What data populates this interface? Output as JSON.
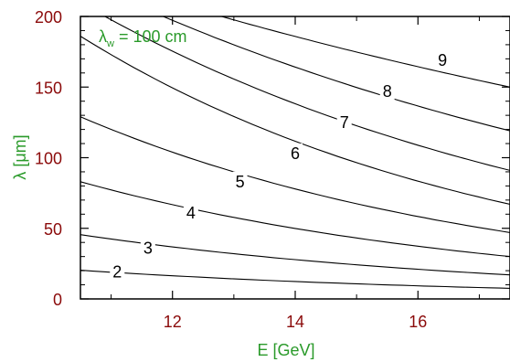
{
  "chart_data": {
    "type": "line",
    "xlabel": "E  [GeV]",
    "ylabel": "λ  [μm]",
    "xlim": [
      10.5,
      17.5
    ],
    "ylim": [
      0,
      200
    ],
    "x_ticks": [
      12,
      14,
      16
    ],
    "y_ticks": [
      0,
      50,
      100,
      150,
      200
    ],
    "annotation": {
      "main": "λ",
      "sub": "w",
      "rest": " = 100 cm"
    },
    "grid": false,
    "colors": {
      "tick_labels": "#8b0a0a",
      "axis_titles": "#2a9a2a",
      "curves": "#000000"
    },
    "series": [
      {
        "name": "2",
        "x": [
          10.5,
          17.5
        ],
        "y": [
          20.3,
          7.5
        ],
        "label": {
          "text": "2",
          "x": 11.1,
          "y": 19
        }
      },
      {
        "name": "3",
        "x": [
          10.5,
          17.5
        ],
        "y": [
          45.5,
          17
        ],
        "label": {
          "text": "3",
          "x": 11.6,
          "y": 36
        }
      },
      {
        "name": "4",
        "x": [
          10.5,
          17.5
        ],
        "y": [
          83,
          30
        ],
        "label": {
          "text": "4",
          "x": 12.3,
          "y": 61
        }
      },
      {
        "name": "5",
        "x": [
          10.5,
          17.5
        ],
        "y": [
          129,
          47
        ],
        "label": {
          "text": "5",
          "x": 13.1,
          "y": 83
        }
      },
      {
        "name": "6",
        "x": [
          10.5,
          17.5
        ],
        "y": [
          186,
          67
        ],
        "label": {
          "text": "6",
          "x": 14.0,
          "y": 103
        }
      },
      {
        "name": "7",
        "x": [
          10.9,
          17.5
        ],
        "y": [
          200,
          91
        ],
        "label": {
          "text": "7",
          "x": 14.8,
          "y": 125
        }
      },
      {
        "name": "8",
        "x": [
          11.85,
          17.5
        ],
        "y": [
          200,
          119
        ],
        "label": {
          "text": "8",
          "x": 15.5,
          "y": 147
        }
      },
      {
        "name": "9",
        "x": [
          12.8,
          17.5
        ],
        "y": [
          200,
          150
        ],
        "label": {
          "text": "9",
          "x": 16.4,
          "y": 169
        }
      }
    ]
  }
}
